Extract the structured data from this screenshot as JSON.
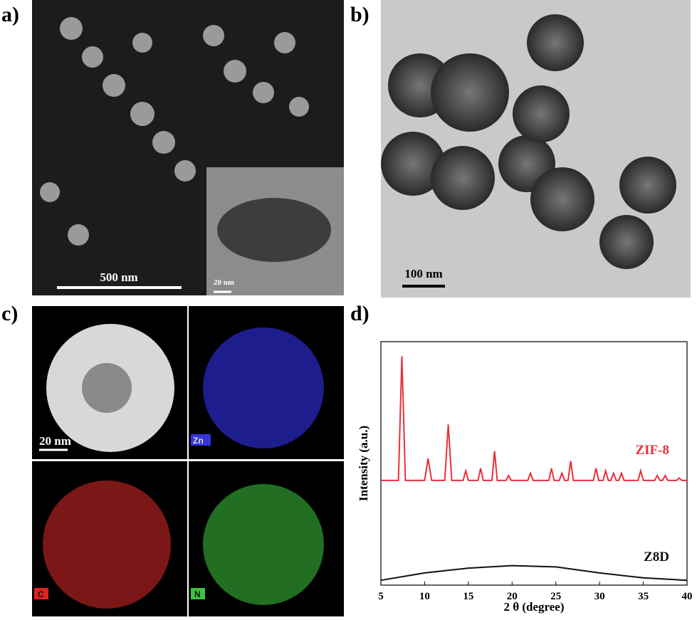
{
  "panels": {
    "a": {
      "label": "a)",
      "scale": "500 nm",
      "inset_scale": "20 nm"
    },
    "b": {
      "label": "b)",
      "scale": "100 nm"
    },
    "c": {
      "label": "c)",
      "scale": "20 nm",
      "maps": [
        "Zn",
        "C",
        "N"
      ]
    },
    "d": {
      "label": "d)"
    }
  },
  "chart_data": {
    "type": "line",
    "xlabel": "2 θ (degree)",
    "ylabel": "Intensity  (a.u.)",
    "xlim": [
      5,
      40
    ],
    "xticks": [
      5,
      10,
      15,
      20,
      25,
      30,
      35,
      40
    ],
    "ylim": [
      0,
      100
    ],
    "series": [
      {
        "name": "ZIF-8",
        "color": "#e8303a",
        "x": [
          5,
          7.0,
          7.4,
          7.8,
          10.0,
          10.4,
          10.8,
          12.3,
          12.7,
          13.1,
          14.4,
          14.7,
          15.0,
          16.1,
          16.4,
          16.7,
          17.7,
          18.0,
          18.3,
          19.3,
          19.6,
          19.9,
          21.8,
          22.1,
          22.4,
          24.2,
          24.5,
          24.8,
          25.4,
          25.7,
          26.0,
          26.4,
          26.7,
          27.0,
          29.3,
          29.6,
          29.9,
          30.4,
          30.7,
          31.0,
          31.3,
          31.6,
          31.9,
          32.2,
          32.5,
          32.8,
          34.4,
          34.7,
          35.0,
          36.3,
          36.6,
          36.9,
          37.2,
          37.5,
          37.8,
          38.8,
          39.1,
          39.4,
          40
        ],
        "values": [
          43,
          43,
          94,
          43,
          43,
          52,
          43,
          43,
          66,
          43,
          43,
          47,
          43,
          43,
          48,
          43,
          43,
          55,
          43,
          43,
          45,
          43,
          43,
          46,
          43,
          43,
          48,
          43,
          43,
          46,
          43,
          43,
          51,
          43,
          43,
          48,
          43,
          43,
          47,
          43,
          43,
          46,
          43,
          43,
          46,
          43,
          43,
          47,
          43,
          43,
          45,
          43,
          43,
          45,
          43,
          43,
          44,
          43,
          43
        ]
      },
      {
        "name": "Z8D",
        "color": "#111111",
        "x": [
          5,
          10,
          15,
          20,
          25,
          30,
          35,
          40
        ],
        "values": [
          2,
          5,
          7,
          8,
          7.5,
          5,
          3,
          2
        ]
      }
    ]
  }
}
